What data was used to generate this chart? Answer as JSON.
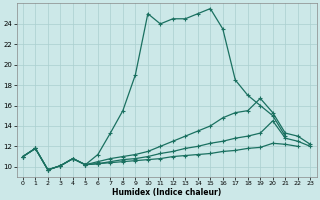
{
  "xlabel": "Humidex (Indice chaleur)",
  "ylabel": "",
  "bg_color": "#cce8e8",
  "grid_color": "#aacfcf",
  "line_color": "#1a7060",
  "xlim": [
    -0.5,
    23.5
  ],
  "ylim": [
    9.0,
    26.0
  ],
  "xticks": [
    0,
    1,
    2,
    3,
    4,
    5,
    6,
    7,
    8,
    9,
    10,
    11,
    12,
    13,
    14,
    15,
    16,
    17,
    18,
    19,
    20,
    21,
    22,
    23
  ],
  "yticks": [
    10,
    12,
    14,
    16,
    18,
    20,
    22,
    24
  ],
  "line1_x": [
    0,
    1,
    2,
    3,
    4,
    5,
    6,
    7,
    8,
    9,
    10,
    11,
    12,
    13,
    14,
    15,
    16,
    17,
    18,
    19,
    20,
    21
  ],
  "line1_y": [
    11.0,
    11.8,
    9.7,
    10.1,
    10.8,
    10.2,
    11.2,
    13.3,
    15.5,
    19.0,
    25.0,
    24.0,
    24.5,
    24.5,
    25.0,
    25.5,
    23.5,
    18.5,
    17.0,
    16.0,
    15.0,
    13.0
  ],
  "line2_x": [
    0,
    1,
    2,
    3,
    4,
    5,
    6,
    7,
    8,
    9,
    10,
    11,
    12,
    13,
    14,
    15,
    16,
    17,
    18,
    19,
    20,
    21,
    22,
    23
  ],
  "line2_y": [
    11.0,
    11.8,
    9.7,
    10.1,
    10.8,
    10.2,
    10.5,
    10.8,
    11.0,
    11.2,
    11.5,
    12.0,
    12.5,
    13.0,
    13.5,
    14.0,
    14.8,
    15.3,
    15.5,
    16.7,
    15.3,
    13.3,
    13.0,
    12.2
  ],
  "line3_x": [
    0,
    1,
    2,
    3,
    4,
    5,
    6,
    7,
    8,
    9,
    10,
    11,
    12,
    13,
    14,
    15,
    16,
    17,
    18,
    19,
    20,
    21,
    22,
    23
  ],
  "line3_y": [
    11.0,
    11.8,
    9.7,
    10.1,
    10.8,
    10.2,
    10.3,
    10.5,
    10.7,
    10.8,
    11.0,
    11.3,
    11.5,
    11.8,
    12.0,
    12.3,
    12.5,
    12.8,
    13.0,
    13.3,
    14.5,
    12.8,
    12.5,
    12.0
  ],
  "line4_x": [
    0,
    1,
    2,
    3,
    4,
    5,
    6,
    7,
    8,
    9,
    10,
    11,
    12,
    13,
    14,
    15,
    16,
    17,
    18,
    19,
    20,
    21,
    22,
    23
  ],
  "line4_y": [
    11.0,
    11.8,
    9.7,
    10.1,
    10.8,
    10.2,
    10.3,
    10.4,
    10.5,
    10.6,
    10.7,
    10.8,
    11.0,
    11.1,
    11.2,
    11.3,
    11.5,
    11.6,
    11.8,
    11.9,
    12.3,
    12.2,
    12.0,
    null
  ]
}
